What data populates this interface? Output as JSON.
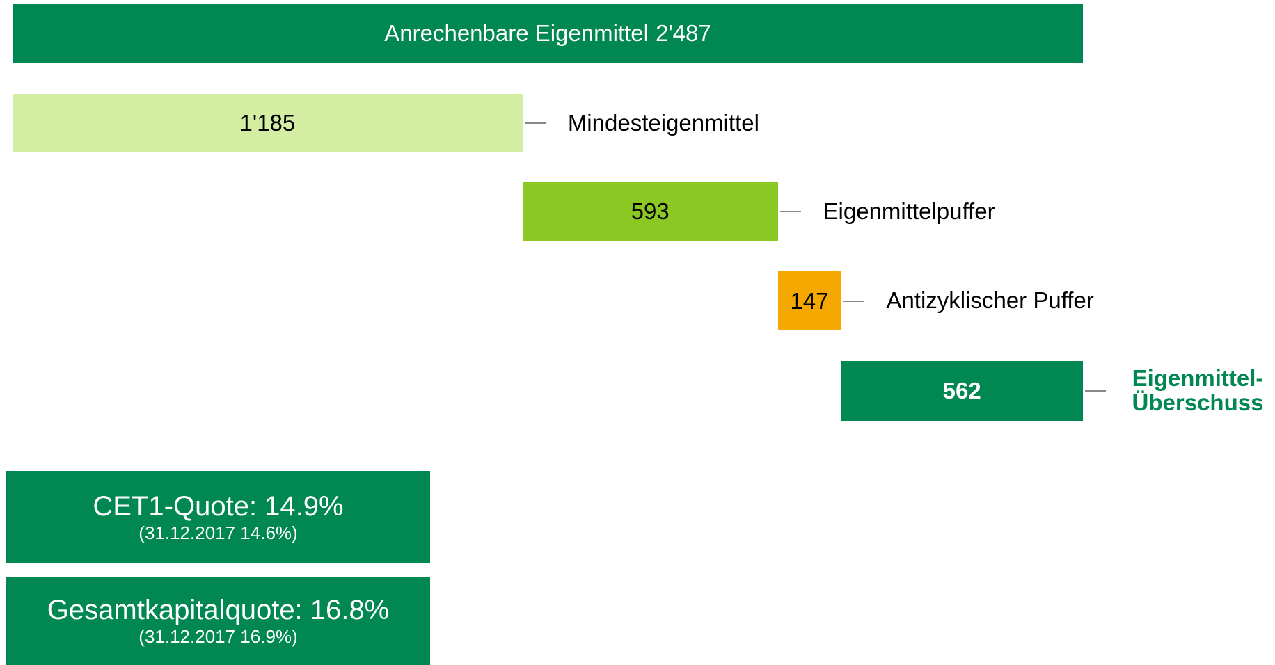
{
  "chart_data": {
    "type": "waterfall",
    "total": {
      "name": "Anrechenbare Eigenmittel",
      "value": 2487,
      "value_label": "2'487",
      "color": "#008752"
    },
    "categories": [
      "Mindesteigenmittel",
      "Eigenmittelpuffer",
      "Antizyklischer Puffer",
      "Eigenmittel-Überschuss"
    ],
    "values": [
      1185,
      593,
      147,
      562
    ],
    "value_labels": [
      "1'185",
      "593",
      "147",
      "562"
    ],
    "colors": [
      "#d3eea2",
      "#8cc823",
      "#f5a800",
      "#008752"
    ],
    "bold": [
      false,
      false,
      false,
      true
    ],
    "boxes": [
      {
        "title": "CET1-Quote: 14.9%",
        "subtitle": "(31.12.2017 14.6%)"
      },
      {
        "title": "Gesamtkapitalquote: 16.8%",
        "subtitle": "(31.12.2017 16.9%)"
      }
    ]
  }
}
